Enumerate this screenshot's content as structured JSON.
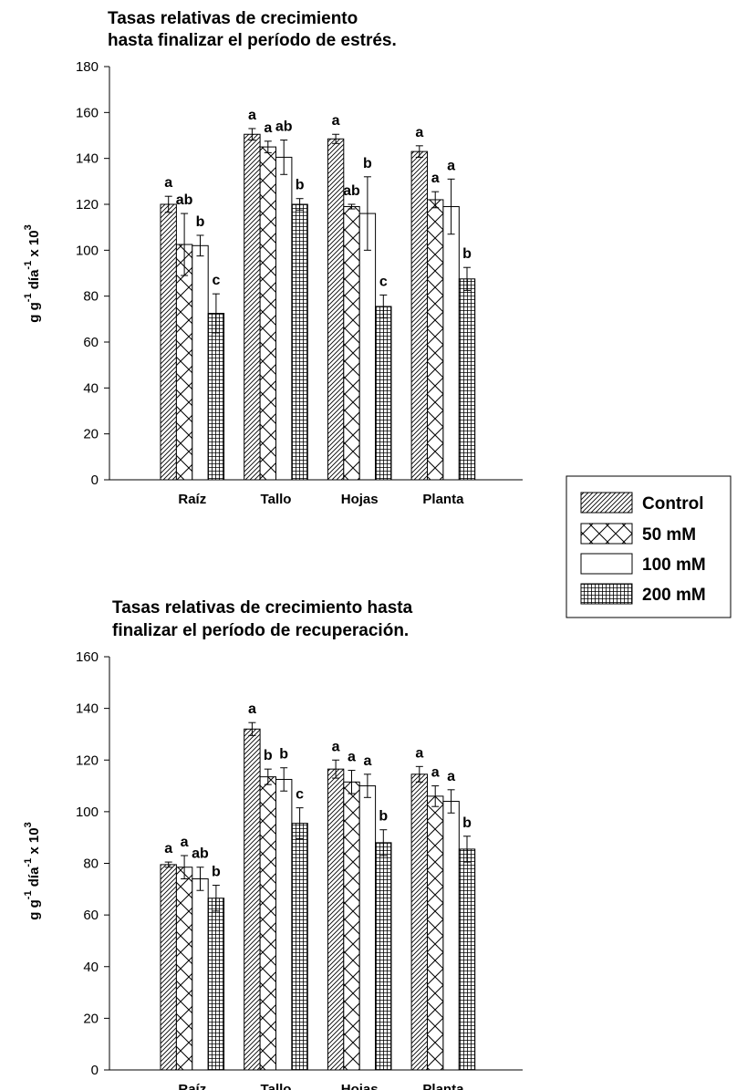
{
  "chart_data": [
    {
      "type": "bar",
      "title": [
        "Tasas relativas de crecimiento",
        "hasta finalizar el período de estrés."
      ],
      "ylabel": "g g-1 día-1 x 103",
      "ylim": [
        0,
        180
      ],
      "yticks": [
        0,
        20,
        40,
        60,
        80,
        100,
        120,
        140,
        160,
        180
      ],
      "categories": [
        "Raíz",
        "Tallo",
        "Hojas",
        "Planta"
      ],
      "series": [
        {
          "name": "Control",
          "values": [
            120,
            150.5,
            148.5,
            143
          ],
          "errors": [
            3.5,
            2.5,
            2,
            2.5
          ],
          "labels": [
            "a",
            "a",
            "a",
            "a"
          ]
        },
        {
          "name": "50 mM",
          "values": [
            102.5,
            145,
            119,
            122
          ],
          "errors": [
            13.5,
            2.5,
            1,
            3.5
          ],
          "labels": [
            "ab",
            "a",
            "ab",
            "a"
          ]
        },
        {
          "name": "100 mM",
          "values": [
            102,
            140.5,
            116,
            119
          ],
          "errors": [
            4.5,
            7.5,
            16,
            12
          ],
          "labels": [
            "b",
            "ab",
            "b",
            "a"
          ]
        },
        {
          "name": "200 mM",
          "values": [
            72.5,
            120,
            75.5,
            87.5
          ],
          "errors": [
            8.5,
            2.5,
            5,
            5
          ],
          "labels": [
            "c",
            "b",
            "c",
            "b"
          ]
        }
      ]
    },
    {
      "type": "bar",
      "title": [
        "Tasas relativas de crecimiento hasta",
        "finalizar el período de recuperación."
      ],
      "ylabel": "g g-1 día-1 x 103",
      "ylim": [
        0,
        160
      ],
      "yticks": [
        0,
        20,
        40,
        60,
        80,
        100,
        120,
        140,
        160
      ],
      "categories": [
        "Raíz",
        "Tallo",
        "Hojas",
        "Planta"
      ],
      "series": [
        {
          "name": "Control",
          "values": [
            79.5,
            132,
            116.5,
            114.5
          ],
          "errors": [
            1,
            2.5,
            3.5,
            3
          ],
          "labels": [
            "a",
            "a",
            "a",
            "a"
          ]
        },
        {
          "name": "50 mM",
          "values": [
            78.5,
            113.5,
            111.5,
            106
          ],
          "errors": [
            4.5,
            3,
            4.5,
            4
          ],
          "labels": [
            "a",
            "b",
            "a",
            "a"
          ]
        },
        {
          "name": "100 mM",
          "values": [
            74,
            112.5,
            110,
            104
          ],
          "errors": [
            4.5,
            4.5,
            4.5,
            4.5
          ],
          "labels": [
            "ab",
            "b",
            "a",
            "a"
          ]
        },
        {
          "name": "200 mM",
          "values": [
            66.5,
            95.5,
            88,
            85.5
          ],
          "errors": [
            5,
            6,
            5,
            5
          ],
          "labels": [
            "b",
            "c",
            "b",
            "b"
          ]
        }
      ]
    }
  ],
  "legend": {
    "placement": "right",
    "entries": [
      {
        "label": "Control",
        "pattern": "diagonal"
      },
      {
        "label": "50 mM",
        "pattern": "crosshatch"
      },
      {
        "label": "100 mM",
        "pattern": "none"
      },
      {
        "label": "200 mM",
        "pattern": "grid"
      }
    ]
  }
}
